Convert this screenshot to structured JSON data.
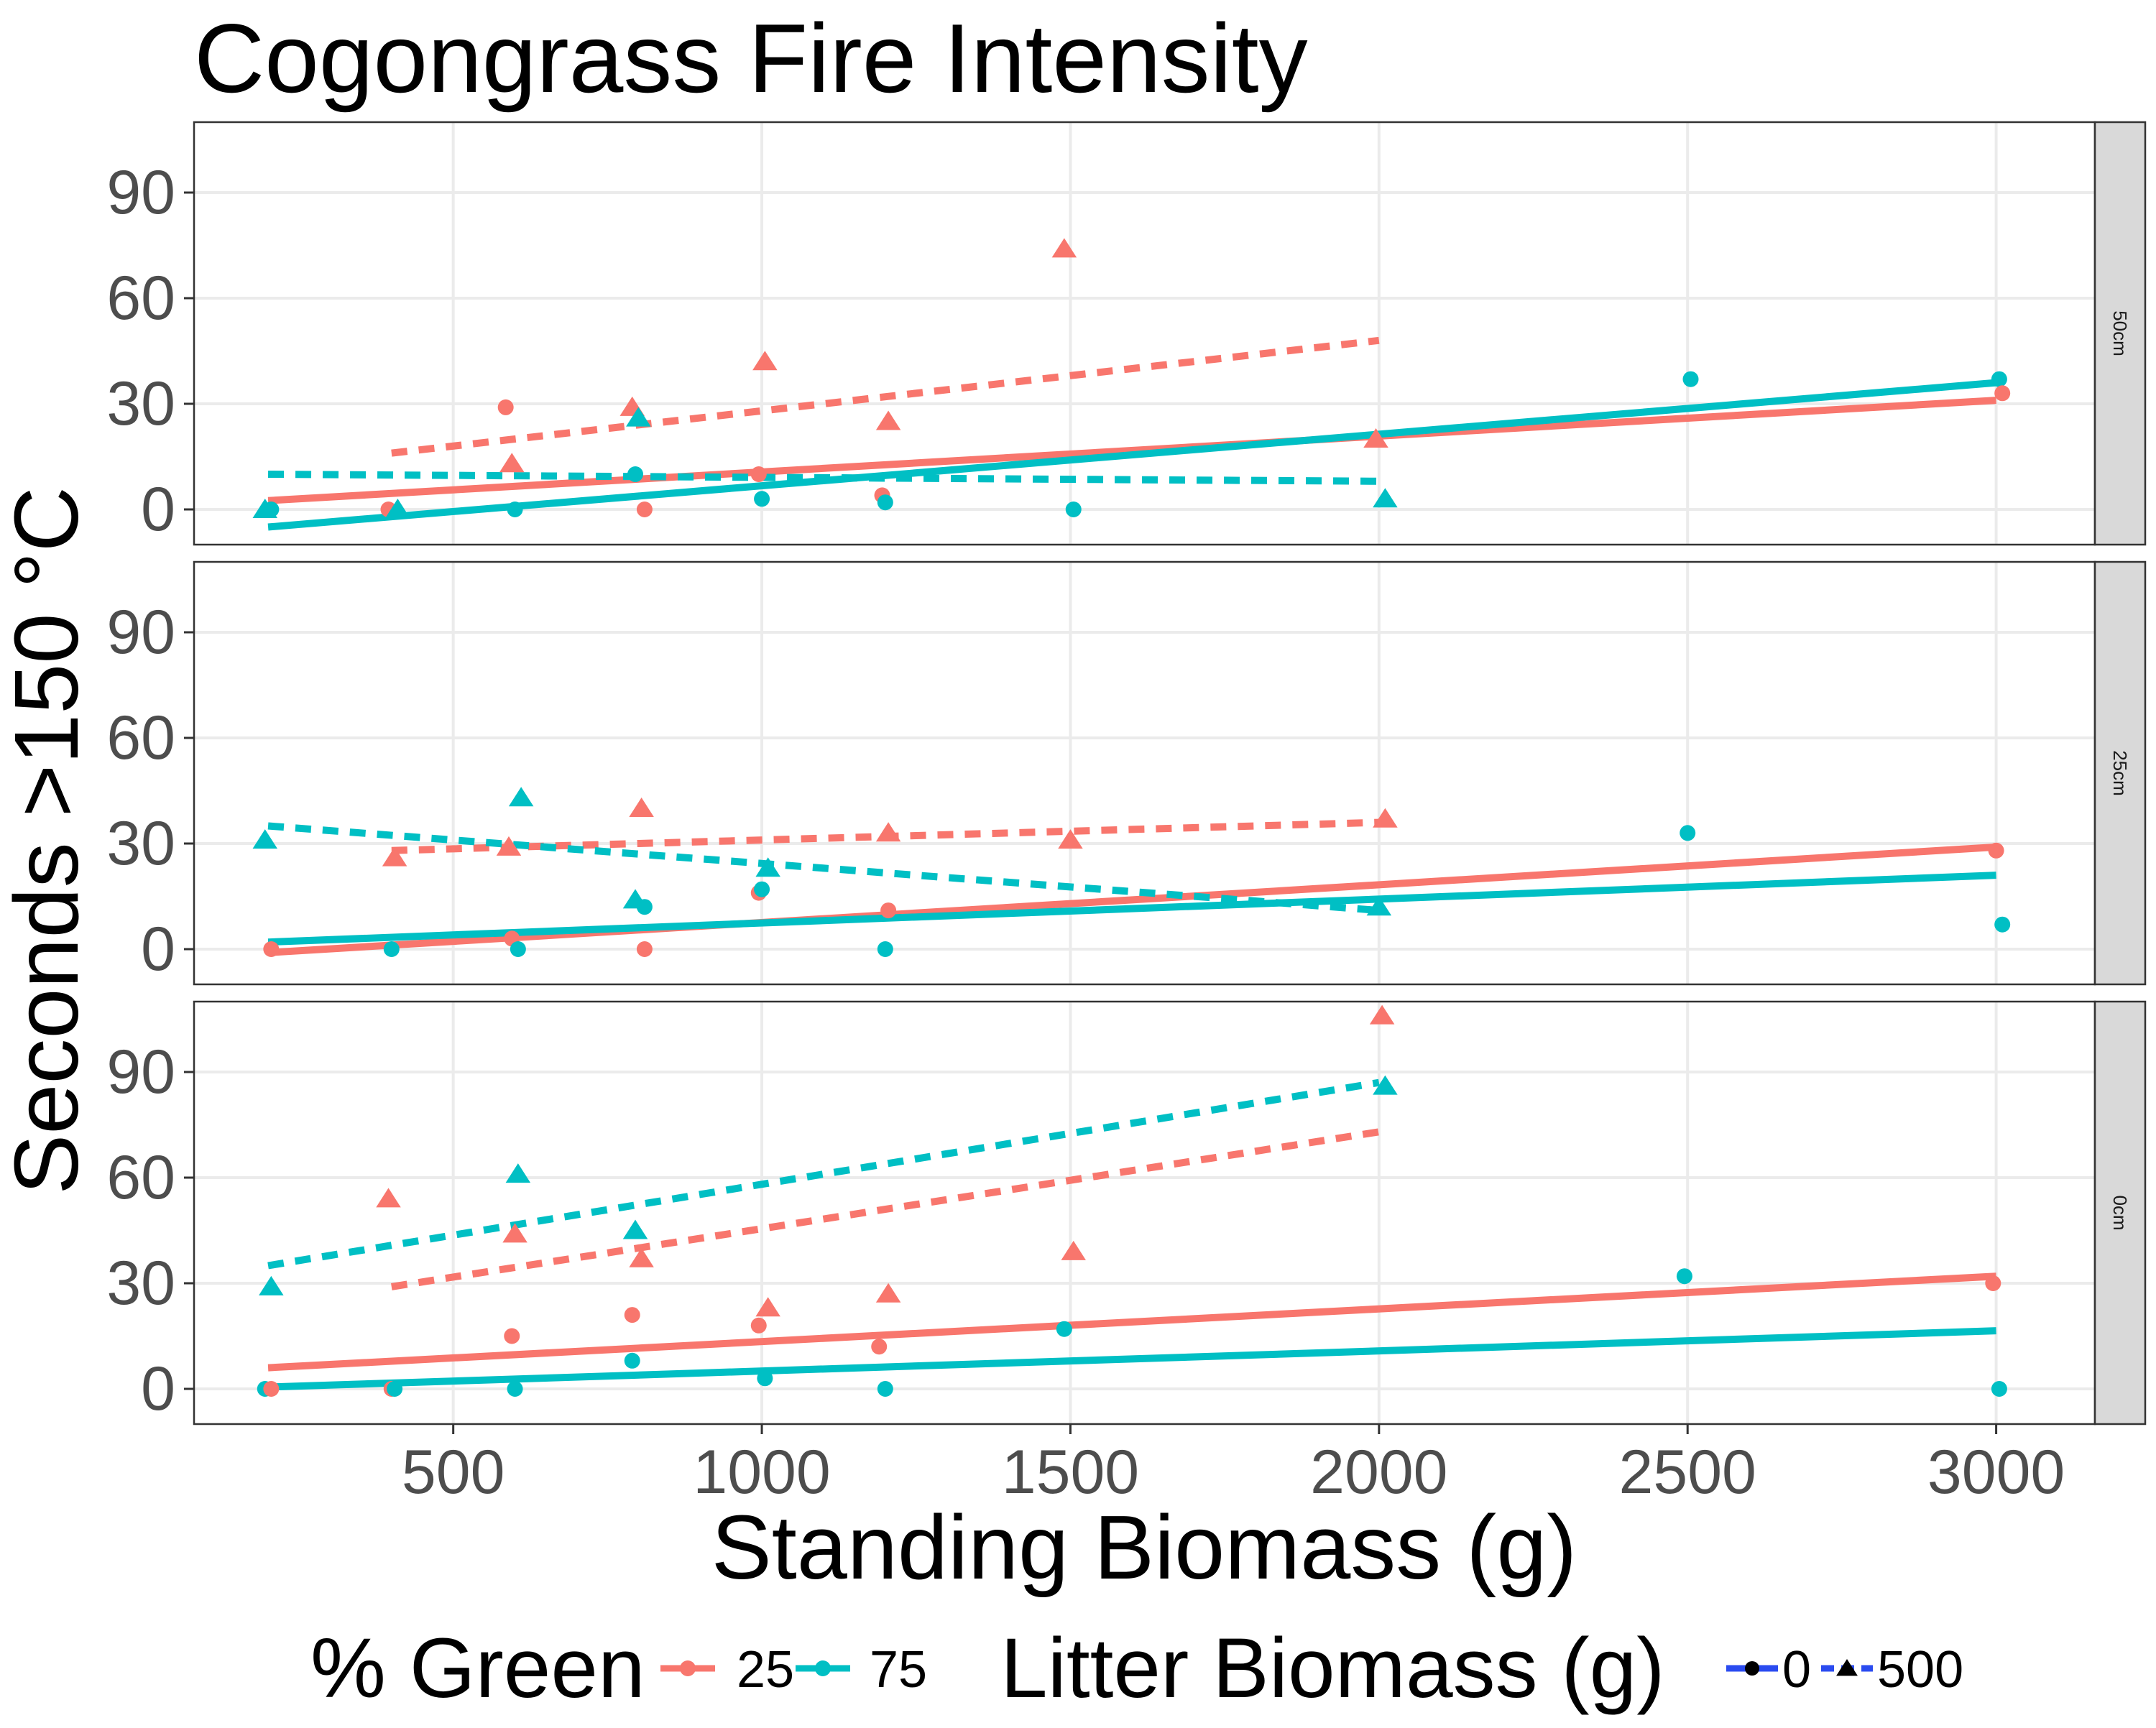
{
  "chart_data": {
    "type": "scatter",
    "title": "Cogongrass Fire Intensity",
    "xlabel": "Standing Biomass (g)",
    "ylabel": "Seconds >150 °C",
    "xlim": [
      80,
      3160
    ],
    "ylim": [
      -10,
      110
    ],
    "x_ticks": [
      500,
      1000,
      1500,
      2000,
      2500,
      3000
    ],
    "y_ticks": [
      0,
      30,
      60,
      90
    ],
    "grid": true,
    "colors": {
      "25": "#F8766D",
      "75": "#00BFC4"
    },
    "legend": {
      "placement": "bottom",
      "green_title": "% Green",
      "green_entries": [
        "25",
        "75"
      ],
      "litter_title": "Litter Biomass (g)",
      "litter_entries": [
        "0",
        "500"
      ]
    },
    "panels": [
      {
        "label": "50cm",
        "points": [
          {
            "x": 195,
            "y": 0,
            "g": "75",
            "l": "500"
          },
          {
            "x": 205,
            "y": 0,
            "g": "75",
            "l": "0"
          },
          {
            "x": 395,
            "y": 0,
            "g": "25",
            "l": "0"
          },
          {
            "x": 410,
            "y": 0,
            "g": "75",
            "l": "500"
          },
          {
            "x": 585,
            "y": 29,
            "g": "25",
            "l": "0"
          },
          {
            "x": 595,
            "y": 13,
            "g": "25",
            "l": "500"
          },
          {
            "x": 600,
            "y": 0,
            "g": "75",
            "l": "0"
          },
          {
            "x": 790,
            "y": 29,
            "g": "25",
            "l": "500"
          },
          {
            "x": 795,
            "y": 10,
            "g": "75",
            "l": "0"
          },
          {
            "x": 800,
            "y": 26,
            "g": "75",
            "l": "500"
          },
          {
            "x": 810,
            "y": 0,
            "g": "25",
            "l": "0"
          },
          {
            "x": 995,
            "y": 10,
            "g": "25",
            "l": "0"
          },
          {
            "x": 1000,
            "y": 3,
            "g": "75",
            "l": "0"
          },
          {
            "x": 1005,
            "y": 42,
            "g": "25",
            "l": "500"
          },
          {
            "x": 1195,
            "y": 4,
            "g": "25",
            "l": "0"
          },
          {
            "x": 1200,
            "y": 2,
            "g": "75",
            "l": "0"
          },
          {
            "x": 1205,
            "y": 25,
            "g": "25",
            "l": "500"
          },
          {
            "x": 1490,
            "y": 74,
            "g": "25",
            "l": "500"
          },
          {
            "x": 1505,
            "y": 0,
            "g": "75",
            "l": "0"
          },
          {
            "x": 1995,
            "y": 20,
            "g": "25",
            "l": "500"
          },
          {
            "x": 2010,
            "y": 3,
            "g": "75",
            "l": "500"
          },
          {
            "x": 2505,
            "y": 37,
            "g": "75",
            "l": "0"
          },
          {
            "x": 3005,
            "y": 37,
            "g": "75",
            "l": "0"
          },
          {
            "x": 3010,
            "y": 33,
            "g": "25",
            "l": "0"
          }
        ],
        "fits": [
          {
            "g": "25",
            "l": "0",
            "x": [
              200,
              3000
            ],
            "y": [
              2.5,
              31
            ]
          },
          {
            "g": "75",
            "l": "0",
            "x": [
              200,
              3000
            ],
            "y": [
              -5,
              36
            ]
          },
          {
            "g": "25",
            "l": "500",
            "x": [
              400,
              2000
            ],
            "y": [
              16,
              48
            ]
          },
          {
            "g": "75",
            "l": "500",
            "x": [
              200,
              2000
            ],
            "y": [
              10,
              8
            ]
          }
        ]
      },
      {
        "label": "25cm",
        "points": [
          {
            "x": 195,
            "y": 31,
            "g": "75",
            "l": "500"
          },
          {
            "x": 205,
            "y": 0,
            "g": "25",
            "l": "0"
          },
          {
            "x": 400,
            "y": 0,
            "g": "75",
            "l": "0"
          },
          {
            "x": 405,
            "y": 26,
            "g": "25",
            "l": "500"
          },
          {
            "x": 590,
            "y": 29,
            "g": "25",
            "l": "500"
          },
          {
            "x": 595,
            "y": 3,
            "g": "25",
            "l": "0"
          },
          {
            "x": 605,
            "y": 0,
            "g": "75",
            "l": "0"
          },
          {
            "x": 610,
            "y": 43,
            "g": "75",
            "l": "500"
          },
          {
            "x": 795,
            "y": 14,
            "g": "75",
            "l": "500"
          },
          {
            "x": 805,
            "y": 40,
            "g": "25",
            "l": "500"
          },
          {
            "x": 810,
            "y": 0,
            "g": "25",
            "l": "0"
          },
          {
            "x": 810,
            "y": 12,
            "g": "75",
            "l": "0"
          },
          {
            "x": 995,
            "y": 16,
            "g": "25",
            "l": "0"
          },
          {
            "x": 1000,
            "y": 17,
            "g": "75",
            "l": "0"
          },
          {
            "x": 1010,
            "y": 23,
            "g": "75",
            "l": "500"
          },
          {
            "x": 1200,
            "y": 0,
            "g": "75",
            "l": "0"
          },
          {
            "x": 1205,
            "y": 11,
            "g": "25",
            "l": "0"
          },
          {
            "x": 1205,
            "y": 33,
            "g": "25",
            "l": "500"
          },
          {
            "x": 1500,
            "y": 31,
            "g": "25",
            "l": "500"
          },
          {
            "x": 2000,
            "y": 12,
            "g": "75",
            "l": "500"
          },
          {
            "x": 2010,
            "y": 37,
            "g": "25",
            "l": "500"
          },
          {
            "x": 2500,
            "y": 33,
            "g": "75",
            "l": "0"
          },
          {
            "x": 3000,
            "y": 28,
            "g": "25",
            "l": "0"
          },
          {
            "x": 3010,
            "y": 7,
            "g": "75",
            "l": "0"
          }
        ],
        "fits": [
          {
            "g": "25",
            "l": "0",
            "x": [
              200,
              3000
            ],
            "y": [
              -1,
              29
            ]
          },
          {
            "g": "75",
            "l": "0",
            "x": [
              200,
              3000
            ],
            "y": [
              2,
              21
            ]
          },
          {
            "g": "25",
            "l": "500",
            "x": [
              400,
              2000
            ],
            "y": [
              28,
              36
            ]
          },
          {
            "g": "75",
            "l": "500",
            "x": [
              200,
              2000
            ],
            "y": [
              35,
              11
            ]
          }
        ]
      },
      {
        "label": "0cm",
        "points": [
          {
            "x": 195,
            "y": 0,
            "g": "75",
            "l": "0"
          },
          {
            "x": 205,
            "y": 0,
            "g": "25",
            "l": "0"
          },
          {
            "x": 205,
            "y": 29,
            "g": "75",
            "l": "500"
          },
          {
            "x": 395,
            "y": 54,
            "g": "25",
            "l": "500"
          },
          {
            "x": 400,
            "y": 0,
            "g": "25",
            "l": "0"
          },
          {
            "x": 405,
            "y": 0,
            "g": "75",
            "l": "0"
          },
          {
            "x": 595,
            "y": 15,
            "g": "25",
            "l": "0"
          },
          {
            "x": 600,
            "y": 44,
            "g": "25",
            "l": "500"
          },
          {
            "x": 600,
            "y": 0,
            "g": "75",
            "l": "0"
          },
          {
            "x": 605,
            "y": 61,
            "g": "75",
            "l": "500"
          },
          {
            "x": 790,
            "y": 21,
            "g": "25",
            "l": "0"
          },
          {
            "x": 790,
            "y": 8,
            "g": "75",
            "l": "0"
          },
          {
            "x": 795,
            "y": 45,
            "g": "75",
            "l": "500"
          },
          {
            "x": 805,
            "y": 37,
            "g": "25",
            "l": "500"
          },
          {
            "x": 995,
            "y": 18,
            "g": "25",
            "l": "0"
          },
          {
            "x": 1005,
            "y": 3,
            "g": "75",
            "l": "0"
          },
          {
            "x": 1010,
            "y": 23,
            "g": "25",
            "l": "500"
          },
          {
            "x": 1190,
            "y": 12,
            "g": "25",
            "l": "0"
          },
          {
            "x": 1200,
            "y": 0,
            "g": "75",
            "l": "0"
          },
          {
            "x": 1205,
            "y": 27,
            "g": "25",
            "l": "500"
          },
          {
            "x": 1490,
            "y": 17,
            "g": "75",
            "l": "0"
          },
          {
            "x": 1505,
            "y": 39,
            "g": "25",
            "l": "500"
          },
          {
            "x": 2005,
            "y": 106,
            "g": "25",
            "l": "500"
          },
          {
            "x": 2010,
            "y": 86,
            "g": "75",
            "l": "500"
          },
          {
            "x": 2495,
            "y": 32,
            "g": "75",
            "l": "0"
          },
          {
            "x": 2995,
            "y": 30,
            "g": "25",
            "l": "0"
          },
          {
            "x": 3005,
            "y": 0,
            "g": "75",
            "l": "0"
          }
        ],
        "fits": [
          {
            "g": "25",
            "l": "0",
            "x": [
              200,
              3000
            ],
            "y": [
              6,
              32
            ]
          },
          {
            "g": "75",
            "l": "0",
            "x": [
              200,
              3000
            ],
            "y": [
              0.5,
              16.5
            ]
          },
          {
            "g": "25",
            "l": "500",
            "x": [
              400,
              2000
            ],
            "y": [
              29,
              73
            ]
          },
          {
            "g": "75",
            "l": "500",
            "x": [
              200,
              2000
            ],
            "y": [
              35,
              87
            ]
          }
        ]
      }
    ]
  }
}
